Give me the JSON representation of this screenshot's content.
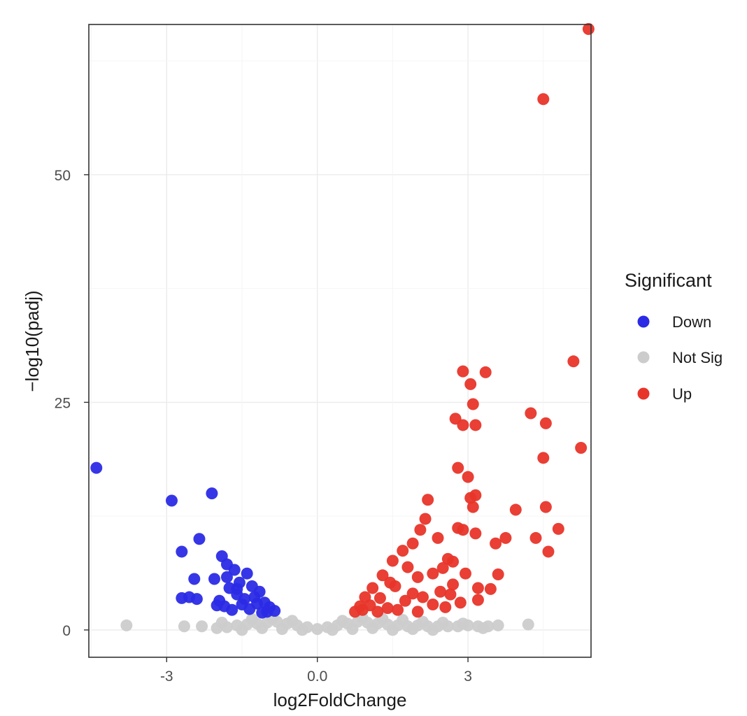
{
  "chart_data": {
    "type": "scatter",
    "xlabel": "log2FoldChange",
    "ylabel": "−log10(padj)",
    "xlim": [
      -4.55,
      5.45
    ],
    "ylim": [
      -3.0,
      66.5
    ],
    "x_ticks": [
      -3,
      0,
      3
    ],
    "x_tick_labels": [
      "-3",
      "0.0",
      "3"
    ],
    "y_ticks": [
      0,
      25,
      50
    ],
    "y_tick_labels": [
      "0",
      "25",
      "50"
    ],
    "grid": true,
    "legend": {
      "title": "Significant",
      "position": "right"
    },
    "series": [
      {
        "name": "Down",
        "color": "#2b2be6",
        "points": [
          [
            -4.4,
            17.8
          ],
          [
            -2.9,
            14.2
          ],
          [
            -2.1,
            15.0
          ],
          [
            -2.35,
            10.0
          ],
          [
            -2.7,
            8.6
          ],
          [
            -2.45,
            5.6
          ],
          [
            -2.7,
            3.5
          ],
          [
            -2.55,
            3.6
          ],
          [
            -2.4,
            3.4
          ],
          [
            -2.05,
            5.6
          ],
          [
            -1.9,
            8.1
          ],
          [
            -1.8,
            7.2
          ],
          [
            -1.65,
            6.6
          ],
          [
            -1.4,
            6.2
          ],
          [
            -1.55,
            5.2
          ],
          [
            -1.3,
            4.8
          ],
          [
            -1.15,
            4.2
          ],
          [
            -1.25,
            3.6
          ],
          [
            -1.05,
            3.0
          ],
          [
            -0.95,
            2.5
          ],
          [
            -0.85,
            2.1
          ],
          [
            -1.75,
            4.6
          ],
          [
            -1.6,
            3.9
          ],
          [
            -1.95,
            3.2
          ],
          [
            -1.85,
            2.6
          ],
          [
            -1.5,
            2.8
          ],
          [
            -1.35,
            2.3
          ],
          [
            -1.7,
            2.2
          ],
          [
            -2.0,
            2.7
          ],
          [
            -1.1,
            1.9
          ],
          [
            -1.45,
            3.4
          ],
          [
            -1.2,
            2.9
          ],
          [
            -1.8,
            5.8
          ],
          [
            -1.6,
            4.5
          ],
          [
            -1.0,
            2.0
          ]
        ]
      },
      {
        "name": "Not Sig",
        "color": "#cccccc",
        "points": [
          [
            -3.8,
            0.5
          ],
          [
            -2.65,
            0.4
          ],
          [
            -2.3,
            0.4
          ],
          [
            -1.8,
            0.3
          ],
          [
            -1.6,
            0.5
          ],
          [
            -1.4,
            0.6
          ],
          [
            -1.2,
            0.7
          ],
          [
            -1.0,
            0.8
          ],
          [
            -0.8,
            0.9
          ],
          [
            -0.6,
            0.7
          ],
          [
            -0.4,
            0.5
          ],
          [
            -0.2,
            0.3
          ],
          [
            0.0,
            0.1
          ],
          [
            0.2,
            0.3
          ],
          [
            0.4,
            0.5
          ],
          [
            0.6,
            0.7
          ],
          [
            0.8,
            0.9
          ],
          [
            1.0,
            0.8
          ],
          [
            1.2,
            0.7
          ],
          [
            1.4,
            0.6
          ],
          [
            1.6,
            0.5
          ],
          [
            1.8,
            0.4
          ],
          [
            2.0,
            0.5
          ],
          [
            2.2,
            0.4
          ],
          [
            2.4,
            0.4
          ],
          [
            2.6,
            0.4
          ],
          [
            2.8,
            0.4
          ],
          [
            3.0,
            0.5
          ],
          [
            3.2,
            0.4
          ],
          [
            3.4,
            0.4
          ],
          [
            3.6,
            0.5
          ],
          [
            4.2,
            0.6
          ],
          [
            -1.5,
            0.0
          ],
          [
            -1.1,
            0.2
          ],
          [
            -0.7,
            0.1
          ],
          [
            -0.3,
            0.0
          ],
          [
            0.3,
            0.0
          ],
          [
            0.7,
            0.1
          ],
          [
            1.1,
            0.2
          ],
          [
            1.5,
            0.0
          ],
          [
            1.9,
            0.1
          ],
          [
            2.3,
            0.0
          ],
          [
            -0.9,
            1.3
          ],
          [
            -0.5,
            1.0
          ],
          [
            0.5,
            1.0
          ],
          [
            0.9,
            1.3
          ],
          [
            -1.3,
            1.2
          ],
          [
            1.3,
            1.2
          ],
          [
            -1.9,
            0.8
          ],
          [
            1.7,
            1.1
          ],
          [
            2.1,
            0.9
          ],
          [
            2.5,
            0.8
          ],
          [
            2.9,
            0.7
          ],
          [
            -2.0,
            0.2
          ],
          [
            3.3,
            0.2
          ]
        ]
      },
      {
        "name": "Up",
        "color": "#e8352a",
        "points": [
          [
            5.4,
            66.0
          ],
          [
            4.5,
            58.3
          ],
          [
            5.1,
            29.5
          ],
          [
            5.25,
            20.0
          ],
          [
            4.25,
            23.8
          ],
          [
            4.55,
            22.7
          ],
          [
            4.5,
            18.9
          ],
          [
            4.55,
            13.5
          ],
          [
            4.8,
            11.1
          ],
          [
            4.35,
            10.1
          ],
          [
            4.6,
            8.6
          ],
          [
            3.95,
            13.2
          ],
          [
            3.75,
            10.1
          ],
          [
            3.55,
            9.5
          ],
          [
            3.6,
            6.1
          ],
          [
            3.45,
            4.5
          ],
          [
            3.2,
            4.6
          ],
          [
            3.2,
            3.3
          ],
          [
            3.15,
            10.6
          ],
          [
            3.1,
            13.5
          ],
          [
            3.05,
            14.5
          ],
          [
            3.15,
            14.8
          ],
          [
            3.0,
            16.8
          ],
          [
            2.8,
            17.8
          ],
          [
            2.9,
            22.5
          ],
          [
            2.75,
            23.2
          ],
          [
            3.15,
            22.5
          ],
          [
            3.1,
            24.8
          ],
          [
            3.05,
            27.0
          ],
          [
            2.9,
            28.4
          ],
          [
            3.35,
            28.3
          ],
          [
            2.9,
            11.0
          ],
          [
            2.8,
            11.2
          ],
          [
            2.7,
            7.5
          ],
          [
            2.6,
            7.8
          ],
          [
            2.5,
            6.8
          ],
          [
            2.4,
            10.1
          ],
          [
            2.2,
            14.3
          ],
          [
            2.15,
            12.2
          ],
          [
            2.05,
            11.0
          ],
          [
            1.9,
            9.5
          ],
          [
            1.7,
            8.7
          ],
          [
            1.5,
            7.6
          ],
          [
            1.8,
            6.9
          ],
          [
            2.3,
            6.2
          ],
          [
            2.0,
            5.8
          ],
          [
            1.3,
            6.0
          ],
          [
            1.1,
            4.6
          ],
          [
            0.95,
            3.6
          ],
          [
            0.85,
            2.6
          ],
          [
            0.75,
            2.0
          ],
          [
            1.55,
            4.8
          ],
          [
            1.25,
            3.5
          ],
          [
            1.05,
            2.7
          ],
          [
            1.4,
            2.4
          ],
          [
            1.75,
            3.2
          ],
          [
            2.1,
            3.6
          ],
          [
            2.45,
            4.2
          ],
          [
            2.65,
            3.9
          ],
          [
            2.85,
            3.0
          ],
          [
            1.6,
            2.2
          ],
          [
            2.3,
            2.8
          ],
          [
            1.9,
            4.0
          ],
          [
            2.55,
            2.5
          ],
          [
            1.2,
            2.0
          ],
          [
            0.9,
            2.2
          ],
          [
            2.0,
            2.0
          ],
          [
            1.45,
            5.2
          ],
          [
            2.7,
            5.0
          ],
          [
            2.95,
            6.2
          ]
        ]
      }
    ]
  }
}
